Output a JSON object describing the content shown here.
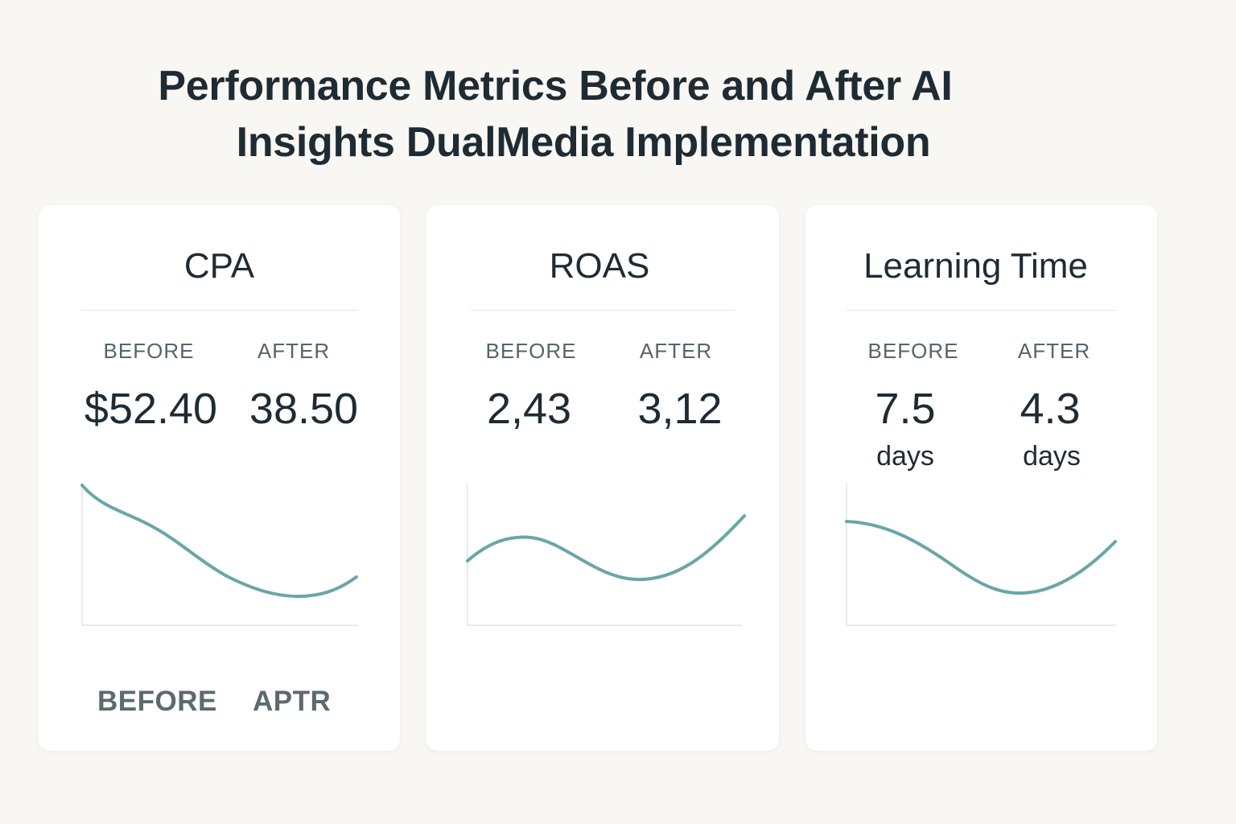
{
  "title_line1": "Performance Metrics Before and After AI",
  "title_line2": "Insights DualMedia Implementation",
  "colors": {
    "background": "#f8f7f4",
    "card": "#ffffff",
    "line": "#6aa6a6",
    "text": "#1f2b33",
    "label": "#56646a"
  },
  "cards": [
    {
      "title": "CPA",
      "before_label": "BEFORE",
      "after_label": "AFTER",
      "before_value": "$52.40",
      "after_value": "38.50",
      "footer_before": "BEFORE",
      "footer_after": "APTR",
      "trend": "decreasing"
    },
    {
      "title": "ROAS",
      "before_label": "BEFORE",
      "after_label": "AFTER",
      "before_value": "2,43",
      "after_value": "3,12",
      "trend": "increasing"
    },
    {
      "title": "Learning Time",
      "before_label": "BEFORE",
      "after_label": "AFTER",
      "before_value": "7.5",
      "after_value": "4.3",
      "before_unit": "days",
      "after_unit": "days",
      "trend": "decreasing"
    }
  ]
}
